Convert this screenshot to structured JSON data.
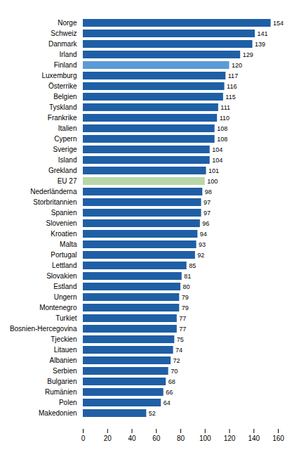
{
  "chart_data": {
    "type": "bar",
    "orientation": "horizontal",
    "categories": [
      "Norge",
      "Schweiz",
      "Danmark",
      "Irland",
      "Finland",
      "Luxemburg",
      "Österrike",
      "Belgien",
      "Tyskland",
      "Frankrike",
      "Italien",
      "Cypern",
      "Sverige",
      "Island",
      "Grekland",
      "EU 27",
      "Nederländerna",
      "Storbritannien",
      "Spanien",
      "Slovenien",
      "Kroatien",
      "Malta",
      "Portugal",
      "Lettland",
      "Slovakien",
      "Estland",
      "Ungern",
      "Montenegro",
      "Turkiet",
      "Bosnien-Hercegovina",
      "Tjeckien",
      "Litauen",
      "Albanien",
      "Serbien",
      "Bulgarien",
      "Rumänien",
      "Polen",
      "Makedonien"
    ],
    "values": [
      154,
      141,
      139,
      129,
      120,
      117,
      116,
      115,
      111,
      110,
      108,
      108,
      104,
      104,
      101,
      100,
      98,
      97,
      97,
      96,
      94,
      93,
      92,
      85,
      81,
      80,
      79,
      79,
      77,
      77,
      75,
      74,
      72,
      70,
      68,
      66,
      64,
      52
    ],
    "colors": [
      "#1f5fa6",
      "#1f5fa6",
      "#1f5fa6",
      "#1f5fa6",
      "#5b9bd5",
      "#1f5fa6",
      "#1f5fa6",
      "#1f5fa6",
      "#1f5fa6",
      "#1f5fa6",
      "#1f5fa6",
      "#1f5fa6",
      "#1f5fa6",
      "#1f5fa6",
      "#1f5fa6",
      "#b7d7a8",
      "#1f5fa6",
      "#1f5fa6",
      "#1f5fa6",
      "#1f5fa6",
      "#1f5fa6",
      "#1f5fa6",
      "#1f5fa6",
      "#1f5fa6",
      "#1f5fa6",
      "#1f5fa6",
      "#1f5fa6",
      "#1f5fa6",
      "#1f5fa6",
      "#1f5fa6",
      "#1f5fa6",
      "#1f5fa6",
      "#1f5fa6",
      "#1f5fa6",
      "#1f5fa6",
      "#1f5fa6",
      "#1f5fa6",
      "#1f5fa6"
    ],
    "xlim": [
      0,
      160
    ],
    "xticks": [
      0,
      20,
      40,
      60,
      80,
      100,
      120,
      140,
      160
    ],
    "grid": false,
    "data_labels": true
  }
}
